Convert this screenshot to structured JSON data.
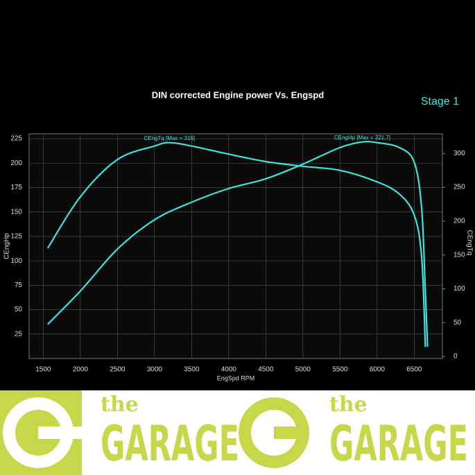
{
  "chart_data": {
    "type": "line",
    "title": "DIN corrected Engine power Vs. Engspd",
    "subtitle": "Stage 1",
    "x_label": "EngSpd RPM",
    "y_label": "CEngHp",
    "y2_label": "CEngTq",
    "xlim": [
      1310,
      6880
    ],
    "xticks": [
      1500,
      2000,
      2500,
      3000,
      3500,
      4000,
      4500,
      5000,
      5500,
      6000,
      6500
    ],
    "ylim": [
      0,
      230
    ],
    "yticks": [
      25,
      50,
      75,
      100,
      125,
      150,
      175,
      200,
      225
    ],
    "y2lim": [
      -3,
      329
    ],
    "y2ticks": [
      0,
      50,
      100,
      150,
      200,
      250,
      300
    ],
    "grid": true,
    "series": [
      {
        "name": "CEngTq",
        "color": "#3fe3dc",
        "axis": "y2",
        "x": [
          1560,
          2000,
          2500,
          3000,
          3200,
          3500,
          4000,
          4500,
          5000,
          5500,
          6000,
          6300,
          6500,
          6600,
          6650
        ],
        "values": [
          160,
          236,
          291,
          311,
          316,
          311,
          299,
          288,
          281,
          275,
          258,
          240,
          209,
          147,
          14
        ]
      },
      {
        "name": "CEngHp",
        "color": "#3fe3dc",
        "x": [
          1560,
          2000,
          2500,
          3000,
          3500,
          4000,
          4500,
          5000,
          5500,
          5800,
          6000,
          6300,
          6500,
          6600,
          6650,
          6680
        ],
        "values": [
          35,
          69,
          112,
          142,
          160,
          174,
          184,
          199,
          216,
          221.7,
          221,
          216,
          201,
          154,
          69,
          12
        ]
      }
    ],
    "annotations": [
      {
        "text": "CEngTq [Max = 316]",
        "x": 3200,
        "y": 316,
        "axis": "y2"
      },
      {
        "text": "CEngHp [Max = 221,7]",
        "x": 5800,
        "y": 221.7
      }
    ]
  },
  "banner": {
    "logos": [
      {
        "small": "the",
        "big": "GARAGE"
      },
      {
        "small": "the",
        "big": "GARAGE"
      }
    ]
  }
}
